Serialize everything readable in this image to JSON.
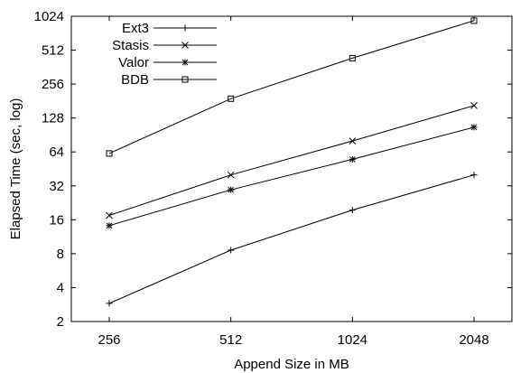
{
  "chart_data": {
    "type": "line",
    "title": "",
    "xlabel": "Append Size in MB",
    "ylabel": "Elapsed Time (sec, log)",
    "x_scale": "log2",
    "y_scale": "log2",
    "x": [
      256,
      512,
      1024,
      2048
    ],
    "x_ticks": [
      "256",
      "512",
      "1024",
      "2048"
    ],
    "y_ticks": [
      2,
      4,
      8,
      16,
      32,
      64,
      128,
      256,
      512,
      1024
    ],
    "y_tick_labels": [
      "2",
      "4",
      "8",
      "16",
      "32",
      "64",
      "128",
      "256",
      "512",
      "1024"
    ],
    "ylim": [
      2,
      1024
    ],
    "grid": false,
    "legend_position": "top-left",
    "series": [
      {
        "name": "Ext3",
        "marker": "plus",
        "values": [
          2.9,
          8.6,
          19.5,
          40
        ]
      },
      {
        "name": "Stasis",
        "marker": "cross",
        "values": [
          17.5,
          40,
          80,
          165
        ]
      },
      {
        "name": "Valor",
        "marker": "star",
        "values": [
          14.2,
          29.5,
          55,
          106
        ]
      },
      {
        "name": "BDB",
        "marker": "square",
        "values": [
          62,
          190,
          435,
          935
        ]
      }
    ],
    "colors": {
      "line": "#000000",
      "background": "#ffffff"
    }
  }
}
